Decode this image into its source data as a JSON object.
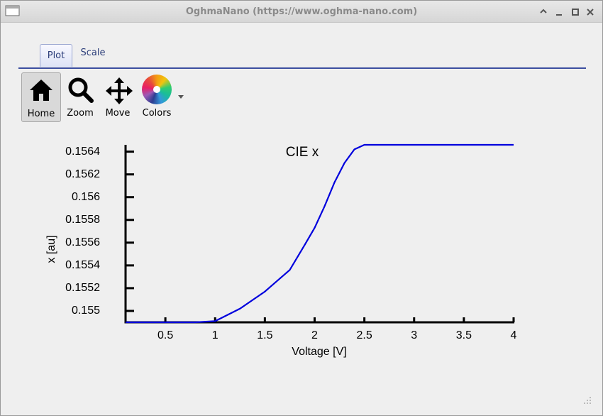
{
  "window": {
    "title": "OghmaNano (https://www.oghma-nano.com)"
  },
  "tabs": [
    "Plot",
    "Scale"
  ],
  "toolbar": [
    "Home",
    "Zoom",
    "Move",
    "Colors"
  ],
  "chart_data": {
    "type": "line",
    "title": "CIE x",
    "x_label": "Voltage [V]",
    "y_label": "x [au]",
    "x": [
      0.1,
      0.5,
      0.8,
      1,
      1.25,
      1.5,
      1.75,
      1.9,
      2,
      2.1,
      2.2,
      2.3,
      2.4,
      2.5,
      3,
      3.5,
      4
    ],
    "values": [
      0.1549,
      0.1549,
      0.1549,
      0.15491,
      0.15502,
      0.15517,
      0.15536,
      0.15558,
      0.15573,
      0.15592,
      0.15613,
      0.1563,
      0.15642,
      0.15646,
      0.15646,
      0.15646,
      0.15646
    ],
    "color": "#0000dd",
    "xlim": [
      0.1,
      4
    ],
    "xticks": [
      0.5,
      1,
      1.5,
      2,
      2.5,
      3,
      3.5,
      4
    ],
    "ylim": [
      0.1549,
      0.15646
    ],
    "yticks": [
      0.155,
      0.1552,
      0.1554,
      0.1556,
      0.1558,
      0.156,
      0.1562,
      0.1564
    ]
  }
}
